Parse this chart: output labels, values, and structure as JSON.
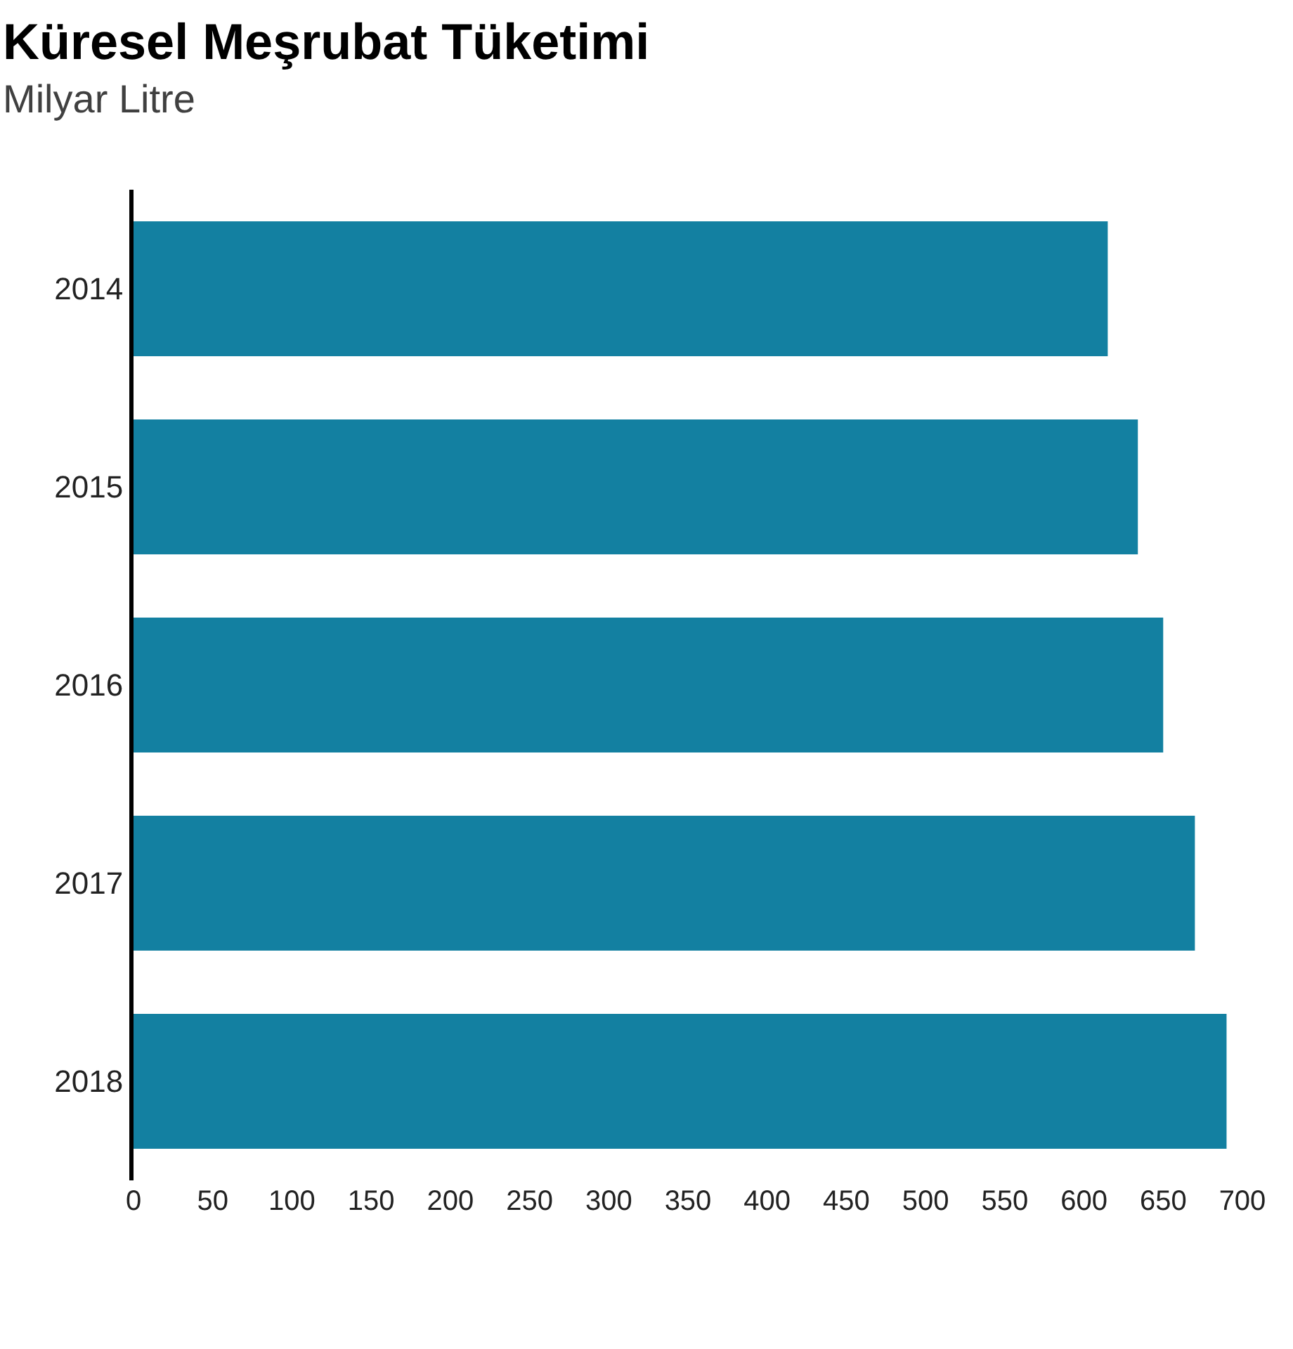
{
  "chart_data": {
    "type": "bar",
    "orientation": "horizontal",
    "title": "Küresel Meşrubat Tüketimi",
    "subtitle": "Milyar Litre",
    "categories": [
      "2014",
      "2015",
      "2016",
      "2017",
      "2018"
    ],
    "values": [
      615,
      634,
      650,
      670,
      690
    ],
    "color": "#1380a1",
    "xlim": [
      0,
      700
    ],
    "xticks": [
      0,
      50,
      100,
      150,
      200,
      250,
      300,
      350,
      400,
      450,
      500,
      550,
      600,
      650,
      700
    ],
    "grid": false
  }
}
